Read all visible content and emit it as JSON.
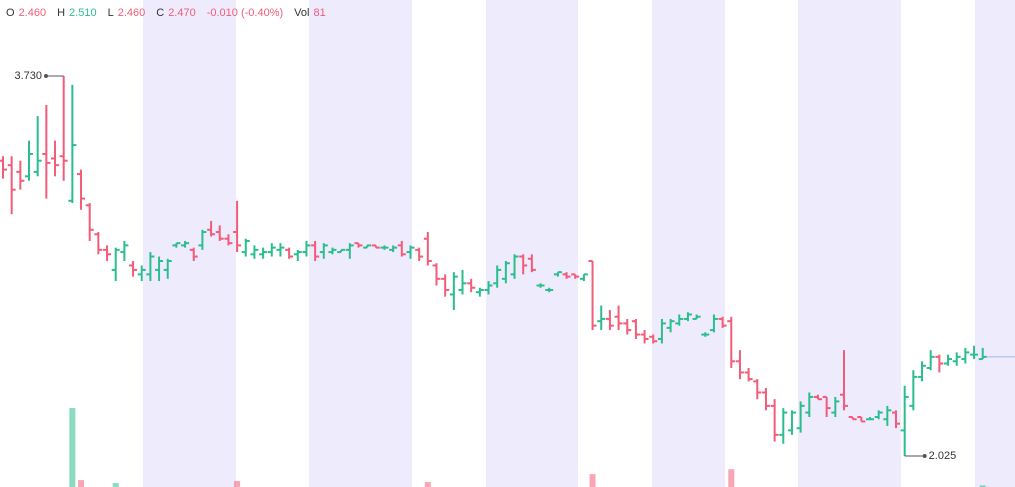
{
  "chart_data": {
    "type": "ohlc",
    "ylim": [
      1.886,
      4.071
    ],
    "up_color": "#2bbd8e",
    "down_color": "#f25c78",
    "open": [
      3.35,
      3.33,
      3.3,
      3.28,
      3.3,
      3.38,
      3.36,
      3.37,
      3.17,
      3.29,
      3.15,
      3.02,
      2.95,
      2.86,
      2.94,
      2.88,
      2.84,
      2.84,
      2.86,
      2.86,
      2.97,
      2.97,
      2.95,
      2.97,
      3.04,
      3.03,
      3.0,
      3.03,
      2.94,
      2.93,
      2.93,
      2.94,
      2.95,
      2.95,
      2.93,
      2.94,
      2.97,
      2.94,
      2.94,
      2.94,
      2.95,
      2.98,
      2.96,
      2.97,
      2.96,
      2.95,
      2.97,
      2.94,
      2.95,
      3.0,
      2.88,
      2.82,
      2.75,
      2.77,
      2.8,
      2.76,
      2.77,
      2.8,
      2.82,
      2.84,
      2.92,
      2.91,
      2.79,
      2.77,
      2.84,
      2.84,
      2.84,
      2.82,
      2.9,
      2.63,
      2.64,
      2.65,
      2.62,
      2.63,
      2.57,
      2.56,
      2.55,
      2.6,
      2.62,
      2.64,
      2.64,
      2.57,
      2.59,
      2.64,
      2.63,
      2.45,
      2.4,
      2.36,
      2.31,
      2.25,
      2.12,
      2.14,
      2.15,
      2.22,
      2.29,
      2.29,
      2.22,
      2.3,
      2.2,
      2.2,
      2.19,
      2.2,
      2.19,
      2.22,
      2.14,
      2.25,
      2.38,
      2.42,
      2.47,
      2.44,
      2.45,
      2.46,
      2.48,
      2.46
    ],
    "high": [
      3.37,
      3.37,
      3.35,
      3.44,
      3.55,
      3.6,
      3.44,
      3.73,
      3.69,
      3.31,
      3.16,
      3.03,
      2.97,
      2.96,
      2.99,
      2.9,
      2.88,
      2.94,
      2.92,
      2.91,
      2.98,
      2.99,
      2.96,
      3.04,
      3.08,
      3.06,
      3.02,
      3.17,
      3.0,
      2.97,
      2.96,
      2.98,
      2.98,
      2.96,
      2.95,
      2.99,
      2.99,
      2.98,
      2.96,
      2.95,
      2.98,
      2.98,
      2.97,
      2.97,
      2.97,
      2.97,
      2.99,
      2.97,
      2.96,
      3.03,
      2.89,
      2.84,
      2.85,
      2.86,
      2.82,
      2.78,
      2.81,
      2.88,
      2.9,
      2.93,
      2.93,
      2.93,
      2.8,
      2.78,
      2.85,
      2.85,
      2.84,
      2.84,
      2.9,
      2.7,
      2.68,
      2.7,
      2.64,
      2.64,
      2.59,
      2.57,
      2.64,
      2.64,
      2.66,
      2.67,
      2.66,
      2.58,
      2.66,
      2.65,
      2.65,
      2.5,
      2.42,
      2.37,
      2.33,
      2.28,
      2.24,
      2.23,
      2.27,
      2.31,
      2.3,
      2.29,
      2.29,
      2.5,
      2.2,
      2.2,
      2.2,
      2.23,
      2.25,
      2.23,
      2.34,
      2.41,
      2.45,
      2.5,
      2.48,
      2.48,
      2.49,
      2.51,
      2.52,
      2.51
    ],
    "low": [
      3.27,
      3.11,
      3.22,
      3.26,
      3.28,
      3.18,
      3.28,
      3.26,
      3.16,
      3.13,
      2.99,
      2.93,
      2.9,
      2.81,
      2.9,
      2.83,
      2.81,
      2.81,
      2.81,
      2.82,
      2.96,
      2.96,
      2.9,
      2.95,
      3.01,
      2.99,
      2.97,
      2.94,
      2.92,
      2.91,
      2.91,
      2.92,
      2.92,
      2.91,
      2.9,
      2.92,
      2.9,
      2.91,
      2.93,
      2.94,
      2.91,
      2.96,
      2.96,
      2.96,
      2.95,
      2.94,
      2.92,
      2.91,
      2.9,
      2.88,
      2.79,
      2.74,
      2.68,
      2.75,
      2.76,
      2.74,
      2.75,
      2.78,
      2.8,
      2.82,
      2.84,
      2.85,
      2.78,
      2.76,
      2.83,
      2.82,
      2.82,
      2.81,
      2.59,
      2.59,
      2.59,
      2.59,
      2.57,
      2.55,
      2.53,
      2.53,
      2.53,
      2.58,
      2.61,
      2.63,
      2.64,
      2.56,
      2.58,
      2.6,
      2.42,
      2.37,
      2.36,
      2.28,
      2.23,
      2.09,
      2.08,
      2.12,
      2.13,
      2.2,
      2.28,
      2.2,
      2.2,
      2.23,
      2.19,
      2.18,
      2.19,
      2.19,
      2.16,
      2.15,
      2.025,
      2.23,
      2.36,
      2.41,
      2.4,
      2.43,
      2.43,
      2.44,
      2.46,
      2.46
    ],
    "close": [
      3.31,
      3.22,
      3.26,
      3.38,
      3.35,
      3.34,
      3.33,
      3.35,
      3.42,
      3.18,
      3.04,
      2.95,
      2.93,
      2.95,
      2.97,
      2.86,
      2.86,
      2.92,
      2.9,
      2.9,
      2.98,
      2.98,
      2.92,
      3.03,
      3.02,
      3.0,
      2.98,
      2.97,
      2.99,
      2.95,
      2.94,
      2.96,
      2.96,
      2.92,
      2.94,
      2.97,
      2.92,
      2.97,
      2.95,
      2.95,
      2.97,
      2.97,
      2.97,
      2.96,
      2.96,
      2.96,
      2.93,
      2.96,
      2.92,
      2.9,
      2.82,
      2.77,
      2.83,
      2.8,
      2.78,
      2.77,
      2.79,
      2.86,
      2.89,
      2.92,
      2.88,
      2.86,
      2.79,
      2.77,
      2.85,
      2.83,
      2.83,
      2.84,
      2.61,
      2.64,
      2.61,
      2.62,
      2.59,
      2.57,
      2.55,
      2.54,
      2.62,
      2.63,
      2.64,
      2.66,
      2.65,
      2.57,
      2.64,
      2.61,
      2.45,
      2.4,
      2.37,
      2.31,
      2.25,
      2.12,
      2.22,
      2.22,
      2.25,
      2.29,
      2.28,
      2.24,
      2.27,
      2.25,
      2.19,
      2.18,
      2.19,
      2.22,
      2.23,
      2.17,
      2.29,
      2.38,
      2.43,
      2.47,
      2.44,
      2.46,
      2.47,
      2.49,
      2.48,
      2.47
    ],
    "volume": [
      0,
      0,
      0,
      0,
      0,
      0,
      0,
      0,
      4000,
      350,
      0,
      0,
      0,
      200,
      0,
      0,
      0,
      0,
      0,
      0,
      0,
      0,
      0,
      0,
      0,
      0,
      0,
      300,
      0,
      0,
      0,
      0,
      0,
      0,
      0,
      0,
      0,
      0,
      0,
      0,
      0,
      0,
      0,
      0,
      0,
      0,
      0,
      0,
      0,
      250,
      0,
      0,
      0,
      0,
      0,
      0,
      0,
      0,
      0,
      0,
      0,
      0,
      0,
      0,
      0,
      0,
      0,
      0,
      650,
      0,
      0,
      0,
      0,
      0,
      0,
      0,
      0,
      0,
      0,
      0,
      0,
      0,
      0,
      0,
      900,
      0,
      0,
      0,
      0,
      0,
      0,
      0,
      0,
      0,
      0,
      0,
      0,
      0,
      0,
      0,
      0,
      0,
      0,
      0,
      0,
      0,
      0,
      0,
      0,
      0,
      0,
      0,
      0,
      81
    ],
    "max_marker": {
      "value": 3.73,
      "label": "3.730"
    },
    "min_marker": 2.025,
    "header": [
      {
        "key": "O",
        "text": "2.460",
        "color": "#f25c78"
      },
      {
        "key": "H",
        "text": "2.510",
        "color": "#2bbd8e"
      },
      {
        "key": "L",
        "text": "2.460",
        "color": "#f25c78"
      },
      {
        "key": "C",
        "text": "2.470",
        "color": "#f25c78"
      },
      {
        "key": "",
        "text": "-0.010 (-0.40%)",
        "color": "#f25c78"
      },
      {
        "key": "Vol",
        "text": "81",
        "color": "#f25c78"
      }
    ]
  }
}
